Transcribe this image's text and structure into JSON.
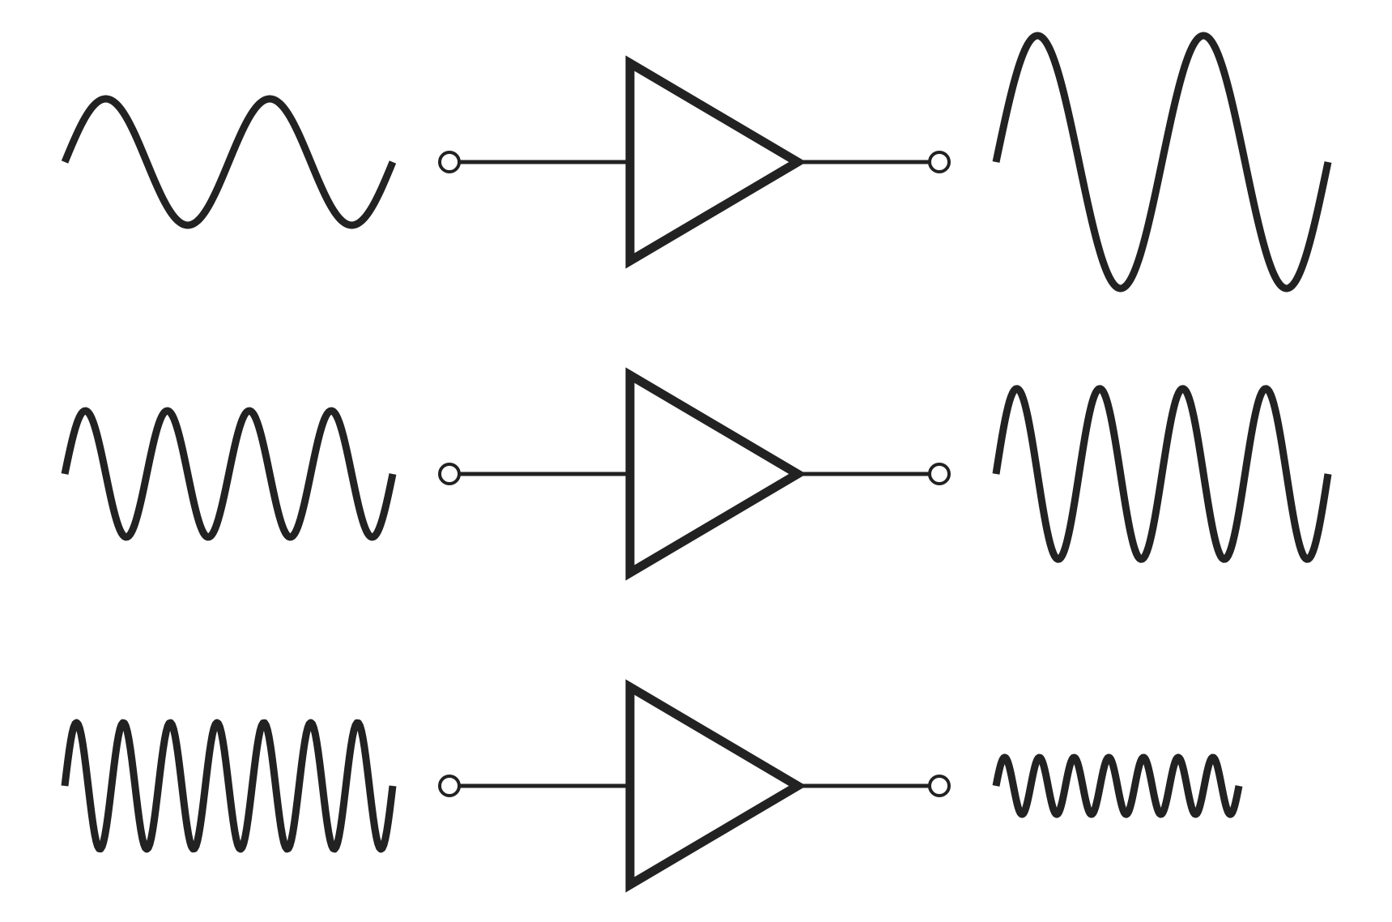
{
  "diagram": {
    "description_type": "amplifier-frequency-response",
    "stroke_color": "#222222",
    "background": "#ffffff",
    "rows": [
      {
        "id": "low-frequency",
        "input": {
          "cycles": 2,
          "amplitude": 1.0
        },
        "output": {
          "cycles": 2,
          "amplitude": 2.0
        }
      },
      {
        "id": "mid-frequency",
        "input": {
          "cycles": 4,
          "amplitude": 1.0
        },
        "output": {
          "cycles": 4,
          "amplitude": 1.35
        }
      },
      {
        "id": "high-frequency",
        "input": {
          "cycles": 7,
          "amplitude": 1.0
        },
        "output": {
          "cycles": 7,
          "amplitude": 0.45
        }
      }
    ]
  }
}
